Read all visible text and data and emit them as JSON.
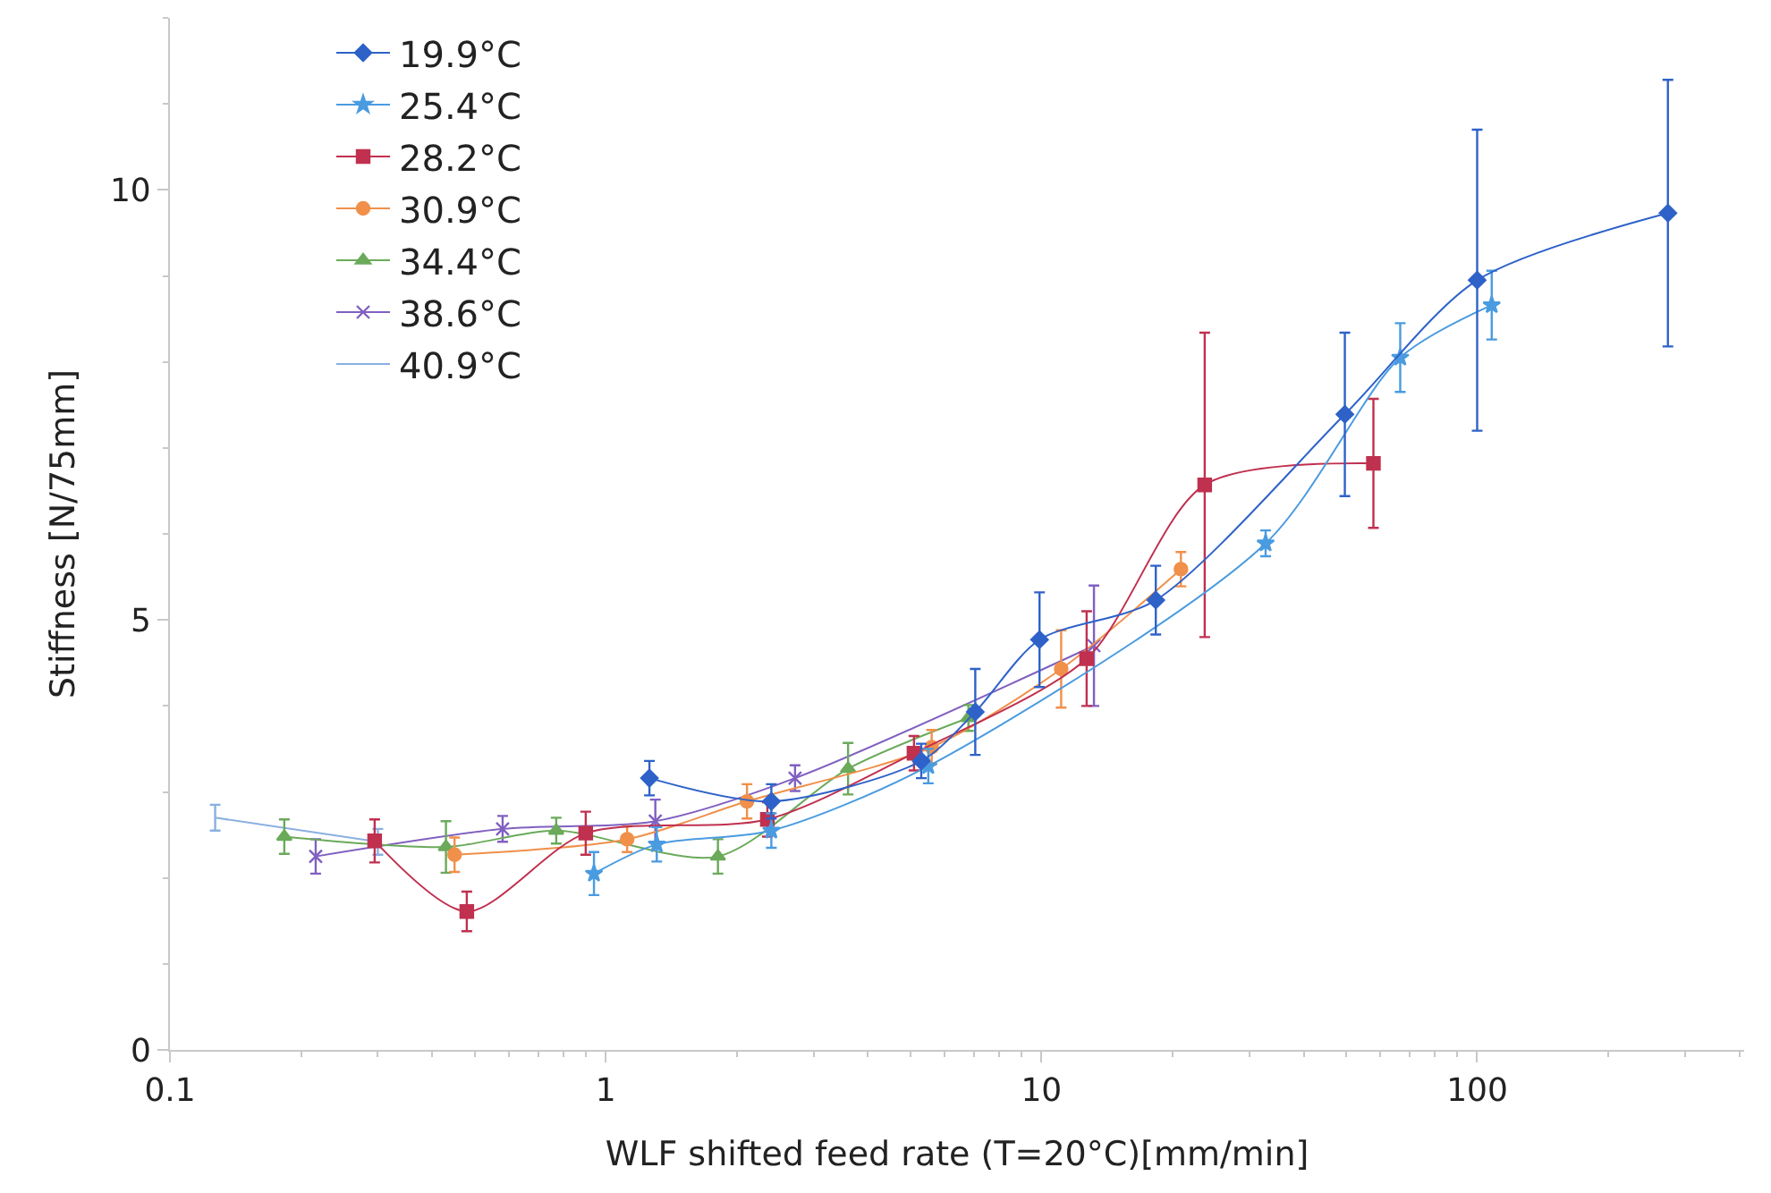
{
  "chart_data": {
    "type": "line",
    "xlabel": "WLF shifted feed rate (T=20°C)[mm/min]",
    "ylabel": "Stiffness [N/75mm]",
    "log": "x",
    "xlim": [
      0.1,
      410
    ],
    "xticks": [
      0.1,
      1,
      10,
      100
    ],
    "ylim": [
      0,
      12
    ],
    "yticks": [
      0,
      5,
      10
    ],
    "legend": "top left",
    "line_style": "solid",
    "series": [
      {
        "name": "19.9°C",
        "color": "#2e62c9",
        "marker": "diamond",
        "x": [
          1.26,
          2.4,
          5.3,
          7.05,
          9.9,
          18.3,
          49.7,
          100,
          274
        ],
        "values": [
          3.16,
          2.89,
          3.36,
          3.93,
          4.77,
          5.23,
          7.39,
          8.95,
          9.73
        ],
        "errors": [
          0.2,
          0.2,
          0.2,
          0.5,
          0.55,
          0.4,
          0.95,
          1.75,
          1.55
        ]
      },
      {
        "name": "25.4°C",
        "color": "#4a9be0",
        "marker": "star",
        "x": [
          0.94,
          1.31,
          2.4,
          5.5,
          32.7,
          66.6,
          108
        ],
        "values": [
          2.05,
          2.39,
          2.55,
          3.3,
          5.89,
          8.05,
          8.66
        ],
        "errors": [
          0.25,
          0.2,
          0.2,
          0.2,
          0.15,
          0.4,
          0.4
        ]
      },
      {
        "name": "28.2°C",
        "color": "#c0304f",
        "marker": "square",
        "x": [
          0.295,
          0.48,
          0.9,
          2.35,
          5.1,
          12.7,
          23.7,
          57.8
        ],
        "values": [
          2.43,
          1.61,
          2.52,
          2.68,
          3.45,
          4.55,
          6.57,
          6.82
        ],
        "errors": [
          0.25,
          0.23,
          0.25,
          0.2,
          0.2,
          0.55,
          1.77,
          0.75
        ]
      },
      {
        "name": "30.9°C",
        "color": "#f0904a",
        "marker": "circle",
        "x": [
          0.45,
          1.12,
          2.11,
          5.6,
          11.1,
          20.9
        ],
        "values": [
          2.27,
          2.45,
          2.89,
          3.52,
          4.43,
          5.59
        ],
        "errors": [
          0.2,
          0.15,
          0.2,
          0.2,
          0.45,
          0.2
        ]
      },
      {
        "name": "34.4°C",
        "color": "#6aaa5a",
        "marker": "triangle",
        "x": [
          0.183,
          0.43,
          0.77,
          1.81,
          3.6,
          6.8
        ],
        "values": [
          2.48,
          2.36,
          2.55,
          2.25,
          3.27,
          3.86
        ],
        "errors": [
          0.2,
          0.3,
          0.15,
          0.2,
          0.3,
          0.15
        ]
      },
      {
        "name": "38.6°C",
        "color": "#8060c0",
        "marker": "cross",
        "x": [
          0.216,
          0.58,
          1.3,
          2.72,
          13.2
        ],
        "values": [
          2.25,
          2.57,
          2.66,
          3.16,
          4.7
        ],
        "errors": [
          0.2,
          0.15,
          0.25,
          0.15,
          0.7
        ]
      },
      {
        "name": "40.9°C",
        "color": "#8ab0e0",
        "marker": "none",
        "x": [
          0.127,
          0.3
        ],
        "values": [
          2.7,
          2.42
        ],
        "errors": [
          0.15,
          0.15
        ]
      }
    ]
  }
}
